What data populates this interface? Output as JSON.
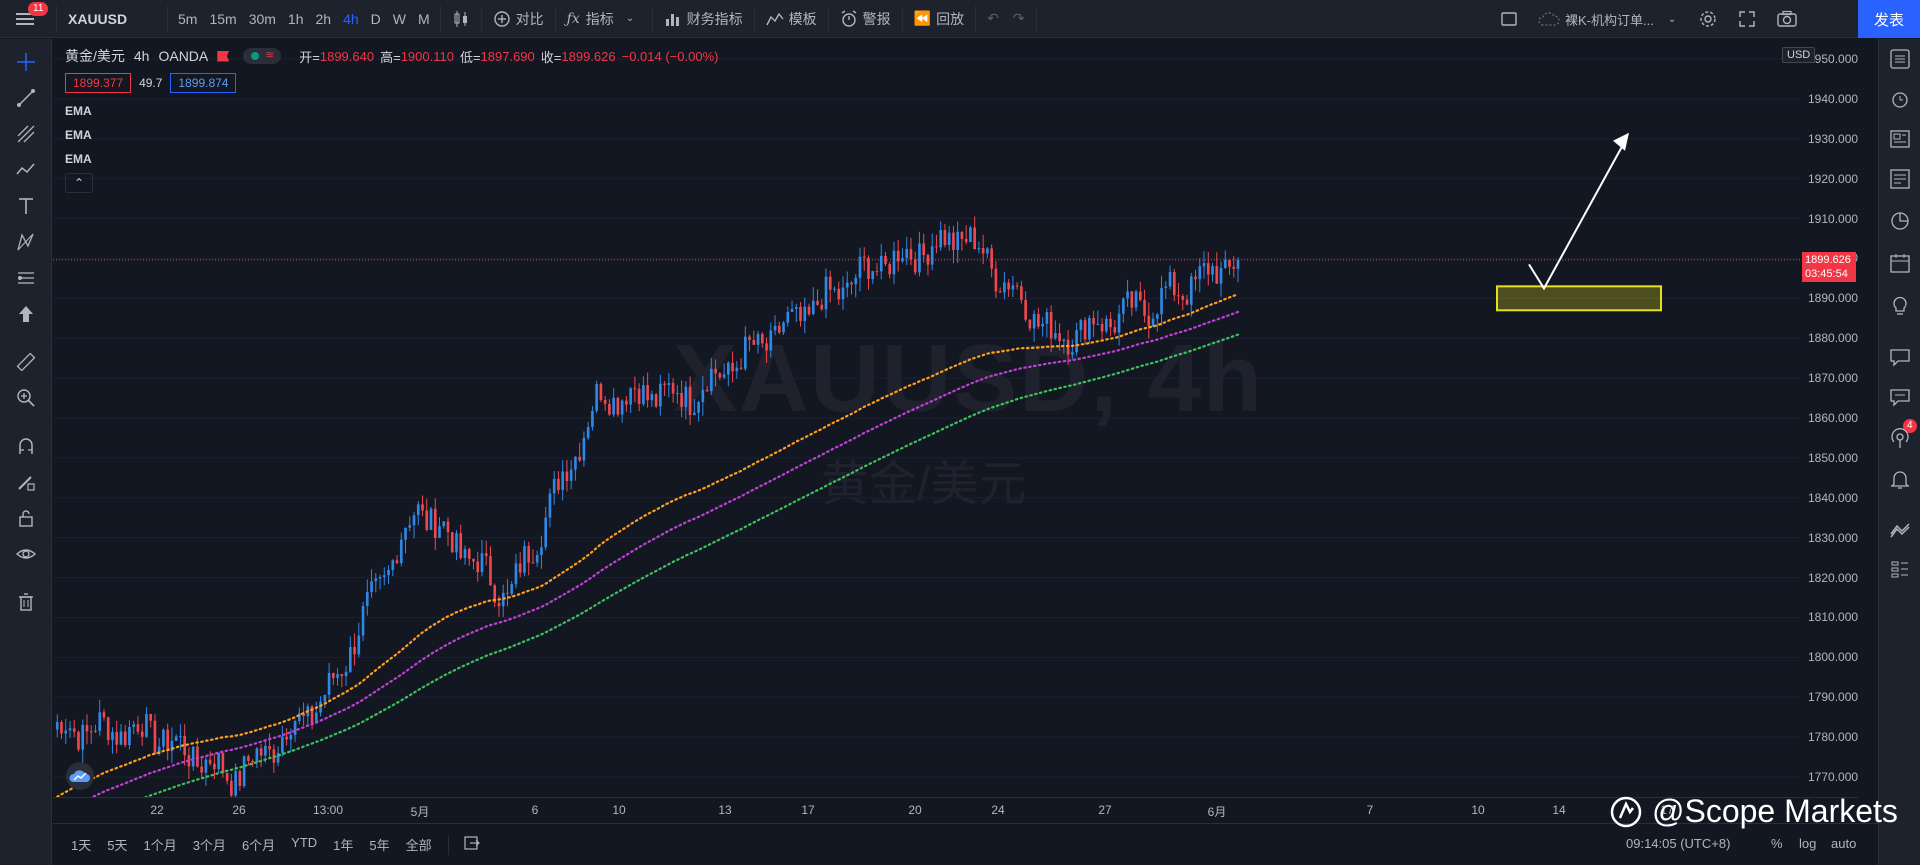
{
  "topbar": {
    "menu_badge": "11",
    "symbol": "XAUUSD",
    "intervals": [
      "5m",
      "15m",
      "30m",
      "1h",
      "2h",
      "4h",
      "D",
      "W",
      "M"
    ],
    "active_interval": "4h",
    "compare_label": "对比",
    "indicators_label": "指标",
    "financials_label": "财务指标",
    "templates_label": "模板",
    "alerts_label": "警报",
    "replay_label": "回放",
    "layout_name": "裸K-机构订单...",
    "publish_label": "发表"
  },
  "legend": {
    "symbol_name": "黄金/美元",
    "interval": "4h",
    "exchange": "OANDA",
    "open_label": "开=",
    "open": "1899.640",
    "high_label": "高=",
    "high": "1900.110",
    "low_label": "低=",
    "low": "1897.690",
    "close_label": "收=",
    "close": "1899.626",
    "change": "−0.014 (−0.00%)",
    "sell_price": "1899.377",
    "spread": "49.7",
    "buy_price": "1899.874",
    "indicators": [
      "EMA",
      "EMA",
      "EMA"
    ]
  },
  "watermark": {
    "line1": "XAUUSD, 4h",
    "line2": "黄金/美元"
  },
  "price_axis": {
    "currency": "USD",
    "ticks": [
      "1950.000",
      "1940.000",
      "1930.000",
      "1920.000",
      "1910.000",
      "1900.000",
      "1890.000",
      "1880.000",
      "1870.000",
      "1860.000",
      "1850.000",
      "1840.000",
      "1830.000",
      "1820.000",
      "1810.000",
      "1800.000",
      "1790.000",
      "1780.000",
      "1770.000"
    ],
    "last_price": "1899.626",
    "countdown": "03:45:54"
  },
  "time_axis": {
    "ticks": [
      "22",
      "26",
      "13:00",
      "5月",
      "6",
      "10",
      "13",
      "17",
      "20",
      "24",
      "27",
      "6月",
      "7",
      "10",
      "14",
      "17"
    ]
  },
  "bottombar": {
    "ranges": [
      "1天",
      "5天",
      "1个月",
      "3个月",
      "6个月",
      "YTD",
      "1年",
      "5年",
      "全部"
    ],
    "clock": "09:14:05 (UTC+8)",
    "percent": "%",
    "log": "log",
    "auto": "auto"
  },
  "brand": {
    "name": "@Scope Markets"
  },
  "colors": {
    "up": "#2f88e6",
    "down": "#f0474f",
    "ema_fast": "#ff9f1a",
    "ema_mid": "#c040d8",
    "ema_slow": "#3cc25a",
    "zone": "#e6e01a"
  },
  "chart_data": {
    "type": "candlestick",
    "symbol": "XAUUSD",
    "interval": "4h",
    "ylim": [
      1765,
      1955
    ],
    "key_points": [
      {
        "label": "22",
        "price": 1782
      },
      {
        "label": "26",
        "price": 1782
      },
      {
        "label": "5月",
        "price": 1770
      },
      {
        "label": "6",
        "price": 1790
      },
      {
        "label": "10",
        "price": 1838
      },
      {
        "label": "13",
        "price": 1815
      },
      {
        "label": "17",
        "price": 1866
      },
      {
        "label": "20",
        "price": 1866
      },
      {
        "label": "24",
        "price": 1882
      },
      {
        "label": "27",
        "price": 1898
      },
      {
        "label": "6月",
        "price": 1906
      },
      {
        "label": "7",
        "price": 1880
      },
      {
        "label": "10",
        "price": 1888
      },
      {
        "label": "last",
        "price": 1899.626
      }
    ],
    "ema_lines": [
      {
        "name": "EMA",
        "start": 1764,
        "end": 1890
      },
      {
        "name": "EMA",
        "start": 1760,
        "end": 1884
      },
      {
        "name": "EMA",
        "start": 1755,
        "end": 1877
      }
    ],
    "zone": {
      "top": 1893,
      "bottom": 1887
    },
    "arrow_target": 1930
  }
}
